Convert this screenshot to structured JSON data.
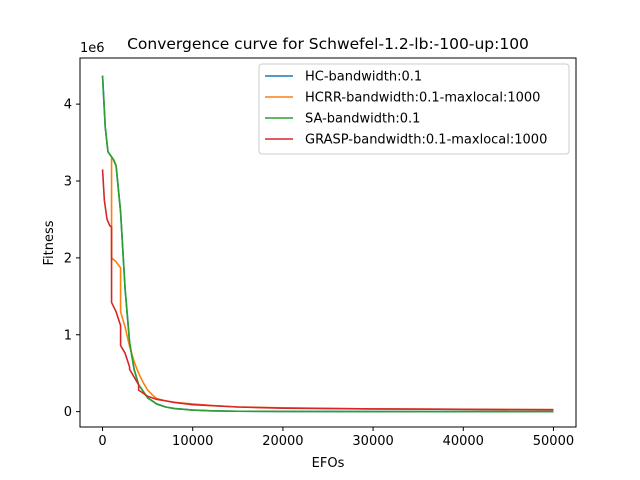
{
  "chart_data": {
    "type": "line",
    "title": "Convergence curve for Schwefel-1.2-lb:-100-up:100",
    "xlabel": "EFOs",
    "ylabel": "Fitness",
    "y_scale_label": "1e6",
    "xlim": [
      -2500,
      52500
    ],
    "ylim": [
      -0.2,
      4.6
    ],
    "x_ticks": [
      0,
      10000,
      20000,
      30000,
      40000,
      50000
    ],
    "x_tick_labels": [
      "0",
      "10000",
      "20000",
      "30000",
      "40000",
      "50000"
    ],
    "y_ticks": [
      0,
      1,
      2,
      3,
      4
    ],
    "y_tick_labels": [
      "0",
      "1",
      "2",
      "3",
      "4"
    ],
    "y_multiplier": 1000000,
    "grid": false,
    "legend_position": "upper-right",
    "series": [
      {
        "name": "HC-bandwidth:0.1",
        "color": "#1f77b4",
        "x": [
          0,
          300,
          600,
          900,
          1200,
          1500,
          2000,
          2500,
          3000,
          3500,
          4000,
          5000,
          6000,
          7000,
          8000,
          10000,
          12000,
          15000,
          20000,
          30000,
          50000
        ],
        "y": [
          4.37,
          3.7,
          3.38,
          3.33,
          3.28,
          3.2,
          2.6,
          1.6,
          0.9,
          0.55,
          0.35,
          0.18,
          0.1,
          0.06,
          0.04,
          0.02,
          0.01,
          0.005,
          0.002,
          0.001,
          0.0005
        ]
      },
      {
        "name": "HCRR-bandwidth:0.1-maxlocal:1000",
        "color": "#ff7f0e",
        "x": [
          1000,
          1000,
          1500,
          2000,
          2000,
          2500,
          3000,
          3500,
          4000,
          4500,
          5000,
          5500,
          6000,
          7000,
          8000,
          10000,
          12000,
          15000,
          20000,
          30000,
          40000,
          50000
        ],
        "y": [
          3.3,
          2.0,
          1.95,
          1.87,
          1.3,
          1.1,
          0.85,
          0.65,
          0.5,
          0.38,
          0.28,
          0.22,
          0.17,
          0.14,
          0.12,
          0.1,
          0.08,
          0.06,
          0.05,
          0.035,
          0.03,
          0.025
        ]
      },
      {
        "name": "SA-bandwidth:0.1",
        "color": "#2ca02c",
        "x": [
          0,
          300,
          600,
          900,
          1200,
          1500,
          2000,
          2500,
          3000,
          3500,
          4000,
          5000,
          6000,
          7000,
          8000,
          10000,
          12000,
          15000,
          20000,
          30000,
          50000
        ],
        "y": [
          4.37,
          3.7,
          3.38,
          3.33,
          3.28,
          3.2,
          2.6,
          1.6,
          0.9,
          0.55,
          0.35,
          0.18,
          0.1,
          0.06,
          0.04,
          0.02,
          0.01,
          0.005,
          0.002,
          0.001,
          0.0005
        ]
      },
      {
        "name": "GRASP-bandwidth:0.1-maxlocal:1000",
        "color": "#d62728",
        "x": [
          0,
          200,
          500,
          800,
          1000,
          1000,
          1500,
          2000,
          2000,
          2500,
          3000,
          3000,
          3500,
          4000,
          4000,
          5000,
          6000,
          7000,
          8000,
          10000,
          15000,
          20000,
          30000,
          40000,
          50000
        ],
        "y": [
          3.15,
          2.75,
          2.5,
          2.42,
          2.4,
          1.42,
          1.3,
          1.12,
          0.86,
          0.76,
          0.58,
          0.55,
          0.45,
          0.35,
          0.28,
          0.2,
          0.16,
          0.14,
          0.12,
          0.09,
          0.06,
          0.045,
          0.035,
          0.03,
          0.025
        ]
      }
    ]
  }
}
